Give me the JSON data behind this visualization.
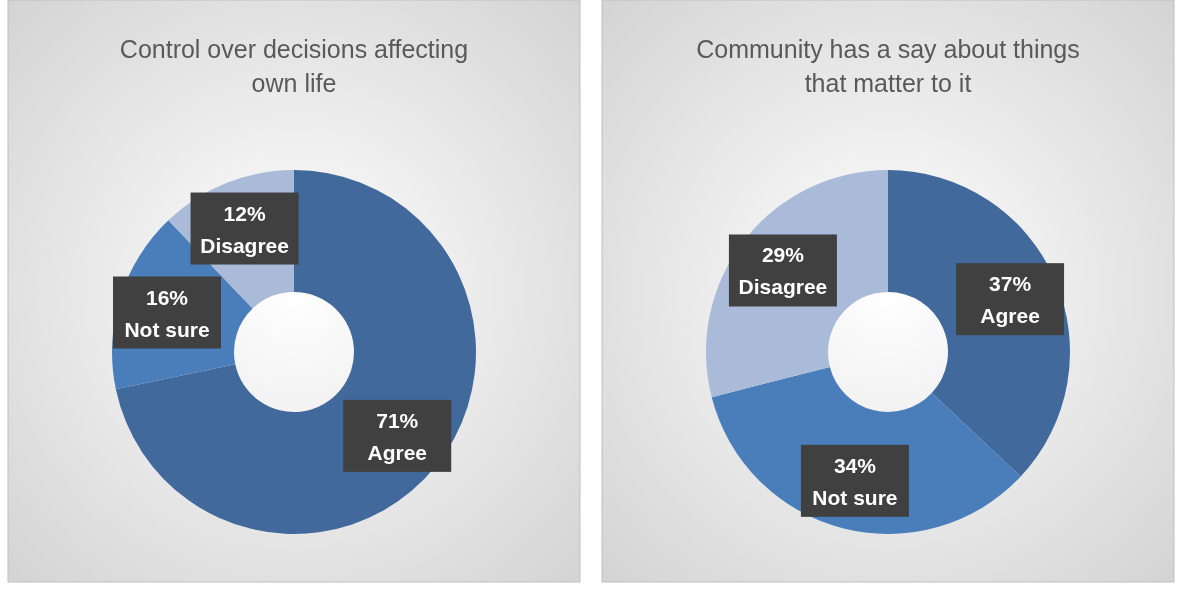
{
  "chart_data": [
    {
      "type": "donut",
      "title": "Control over decisions affecting own life",
      "categories": [
        "Agree",
        "Not sure",
        "Disagree"
      ],
      "values": [
        71,
        16,
        12
      ],
      "value_labels": [
        "71%",
        "16%",
        "12%"
      ],
      "colors": [
        "#41699c",
        "#4a7ebb",
        "#a9bbd8"
      ],
      "legend": false
    },
    {
      "type": "donut",
      "title": "Community has a say about things that matter to it",
      "categories": [
        "Agree",
        "Not sure",
        "Disagree"
      ],
      "values": [
        37,
        34,
        29
      ],
      "value_labels": [
        "37%",
        "34%",
        "29%"
      ],
      "colors": [
        "#41699c",
        "#4a7ebb",
        "#a9bbd8"
      ],
      "legend": false
    }
  ]
}
